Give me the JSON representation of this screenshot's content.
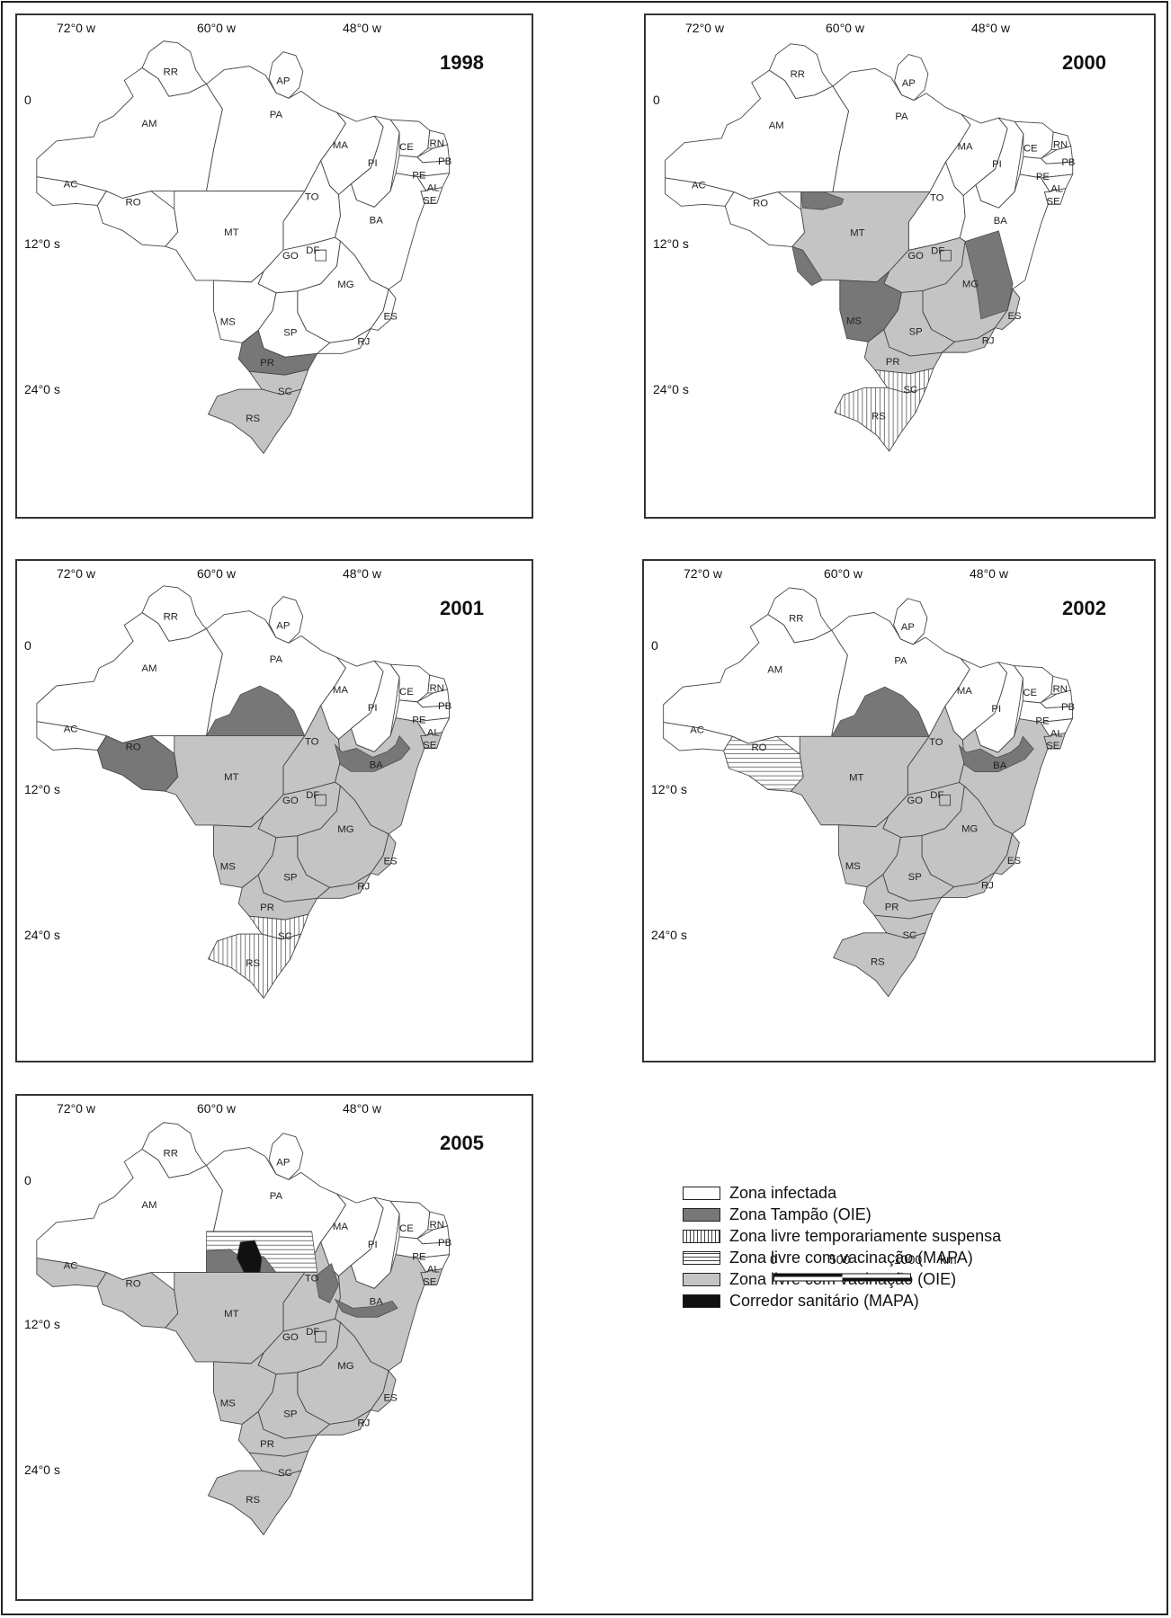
{
  "coords": {
    "lon": [
      "72°0 w",
      "60°0 w",
      "48°0 w"
    ],
    "lat": [
      "0",
      "12°0 s",
      "24°0 s"
    ]
  },
  "colors": {
    "infected": "#ffffff",
    "buffer_oie": "#777777",
    "temp_suspended": "vertical-hatch",
    "free_vac_mapa": "horizontal-hatch",
    "free_vac_oie": "#c4c4c4",
    "corridor": "#111111"
  },
  "states": [
    "RR",
    "AP",
    "AM",
    "PA",
    "MA",
    "CE",
    "RN",
    "PB",
    "PI",
    "PE",
    "AL",
    "SE",
    "AC",
    "RO",
    "TO",
    "BA",
    "MT",
    "GO",
    "DF",
    "MG",
    "ES",
    "MS",
    "SP",
    "RJ",
    "PR",
    "SC",
    "RS"
  ],
  "maps": [
    {
      "year": "1998",
      "zones": {
        "PR": "buffer_oie",
        "SC": "free_vac_oie",
        "RS": "free_vac_oie"
      }
    },
    {
      "year": "2000",
      "zones": {
        "MT": "free_vac_oie",
        "GO": "free_vac_oie",
        "DF": "free_vac_oie",
        "SP": "free_vac_oie",
        "PR": "free_vac_oie",
        "MG": "free_vac_oie",
        "RJ": "free_vac_oie",
        "ES": "free_vac_oie",
        "MS": "buffer_oie",
        "SC": "temp_suspended",
        "RS": "temp_suspended"
      }
    },
    {
      "year": "2001",
      "zones": {
        "RO": "buffer_oie",
        "MT": "free_vac_oie",
        "TO": "free_vac_oie",
        "BA": "free_vac_oie",
        "GO": "free_vac_oie",
        "DF": "free_vac_oie",
        "MG": "free_vac_oie",
        "ES": "free_vac_oie",
        "SE": "free_vac_oie",
        "MS": "free_vac_oie",
        "SP": "free_vac_oie",
        "RJ": "free_vac_oie",
        "PR": "free_vac_oie",
        "SC": "temp_suspended",
        "RS": "temp_suspended"
      }
    },
    {
      "year": "2002",
      "zones": {
        "RO": "free_vac_mapa",
        "MT": "free_vac_oie",
        "TO": "free_vac_oie",
        "BA": "free_vac_oie",
        "GO": "free_vac_oie",
        "DF": "free_vac_oie",
        "MG": "free_vac_oie",
        "ES": "free_vac_oie",
        "SE": "free_vac_oie",
        "MS": "free_vac_oie",
        "SP": "free_vac_oie",
        "RJ": "free_vac_oie",
        "PR": "free_vac_oie",
        "SC": "free_vac_oie",
        "RS": "free_vac_oie"
      }
    },
    {
      "year": "2005",
      "zones": {
        "AC": "free_vac_oie",
        "RO": "free_vac_oie",
        "MT": "free_vac_oie",
        "TO": "free_vac_oie",
        "BA": "free_vac_oie",
        "GO": "free_vac_oie",
        "DF": "free_vac_oie",
        "MG": "free_vac_oie",
        "ES": "free_vac_oie",
        "SE": "free_vac_oie",
        "MS": "free_vac_oie",
        "SP": "free_vac_oie",
        "RJ": "free_vac_oie",
        "PR": "free_vac_oie",
        "SC": "free_vac_oie",
        "RS": "free_vac_oie"
      }
    }
  ],
  "scale_bar": {
    "ticks": [
      "0",
      "500",
      "1000"
    ],
    "unit": "km"
  },
  "legend": [
    {
      "key": "infected",
      "label": "Zona infectada"
    },
    {
      "key": "buffer_oie",
      "label": "Zona Tampão (OIE)"
    },
    {
      "key": "temp_suspended",
      "label": "Zona livre  temporariamente suspensa"
    },
    {
      "key": "free_vac_mapa",
      "label": "Zona livre com vacinação (MAPA)"
    },
    {
      "key": "free_vac_oie",
      "label": "Zona livre com vacinação (OIE)"
    },
    {
      "key": "corridor",
      "label": "Corredor sanitário  (MAPA)"
    }
  ]
}
